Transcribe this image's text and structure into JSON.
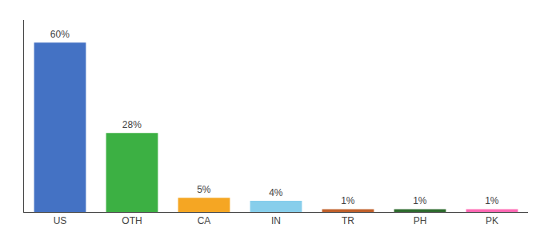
{
  "chart_data": {
    "type": "bar",
    "categories": [
      "US",
      "OTH",
      "CA",
      "IN",
      "TR",
      "PH",
      "PK"
    ],
    "values": [
      60,
      28,
      5,
      4,
      1,
      1,
      1
    ],
    "value_labels": [
      "60%",
      "28%",
      "5%",
      "4%",
      "1%",
      "1%",
      "1%"
    ],
    "data_labels": true,
    "colors": [
      "#4472C4",
      "#3CB043",
      "#F5A623",
      "#87CEEB",
      "#C0602B",
      "#2E6B2E",
      "#FF69B4"
    ],
    "ylim": [
      0,
      68
    ],
    "grid": false,
    "tick_labels": "x"
  }
}
